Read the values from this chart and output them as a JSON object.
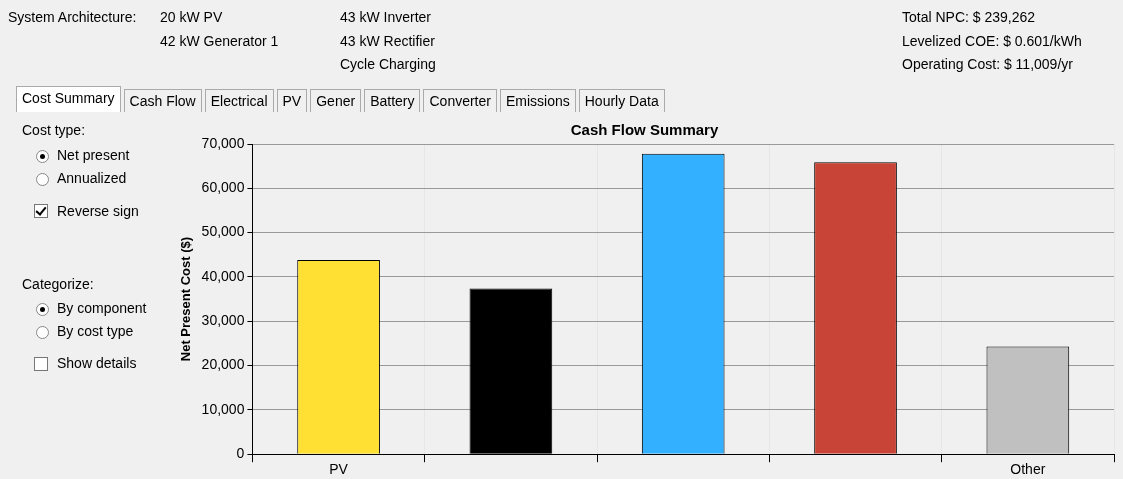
{
  "chart_data": {
    "type": "bar",
    "title": "Cash Flow Summary",
    "ylabel": "Net Present Cost ($)",
    "categories": [
      "PV",
      null,
      null,
      null,
      "Other"
    ],
    "values": [
      43800,
      37400,
      67800,
      65900,
      24300
    ],
    "colors": [
      "#ffe033",
      "#000000",
      "#33b0ff",
      "#c84436",
      "#c0c0c0"
    ],
    "ylim": [
      0,
      70000
    ],
    "yticks": [
      0,
      {
        "value": 10000,
        "label": "10,000"
      },
      {
        "value": 20000,
        "label": "20,000"
      },
      {
        "value": 30000,
        "label": "30,000"
      },
      {
        "value": 40000,
        "label": "40,000"
      },
      {
        "value": 50000,
        "label": "50,000"
      },
      {
        "value": 60000,
        "label": "60,000"
      },
      {
        "value": 70000,
        "label": "70,000"
      }
    ],
    "grid": true,
    "annotations": [
      "System Architecture:",
      "20 kW PV",
      "42 kW Generator 1",
      "Cycle Charging",
      "43 kW Inverter",
      "43 kW Rectifier",
      "Total NPC:  $ 239,262",
      "Levelized COE:  $ 0.601/kWh",
      "Operating Cost:  $ 11,009/yr",
      "Cost Summary",
      "Cash Flow",
      "Electrical",
      "PV",
      "Gener",
      "Battery",
      "Converter",
      "Emissions",
      "Hourly Data",
      "Cost type:",
      "Net present",
      "Annualized",
      "Reverse sign",
      "Categorize:",
      "By component",
      "By cost type",
      "Show details"
    ]
  }
}
